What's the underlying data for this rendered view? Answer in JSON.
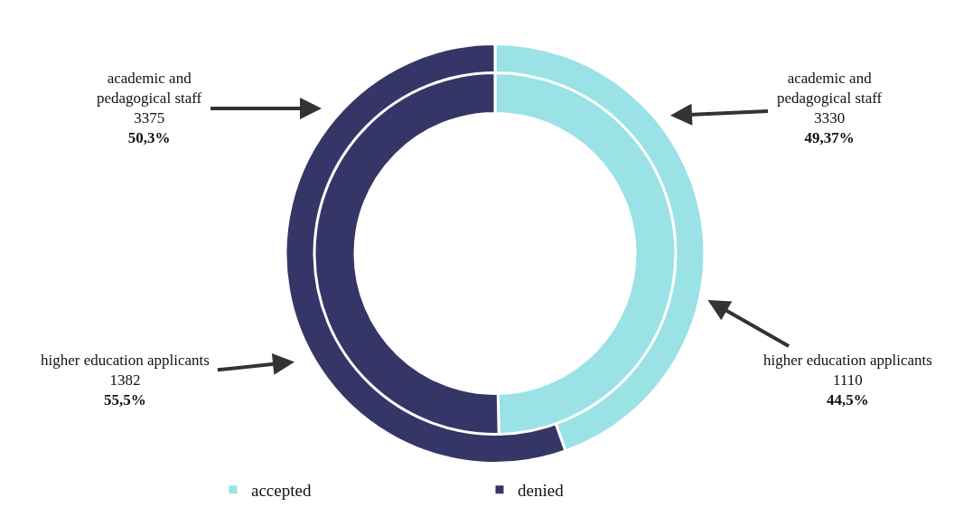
{
  "chart_data": {
    "type": "donut",
    "categories": [
      "accepted",
      "denied"
    ],
    "colors": [
      "#9ae2e6",
      "#363567"
    ],
    "legend": "bottom",
    "series": [
      {
        "name": "higher education applicants",
        "values": [
          1110,
          1382
        ],
        "value_labels": [
          "1110\n44,5%",
          "1382\n55,5%"
        ]
      },
      {
        "name": "academic and pedagogical staff",
        "values": [
          3330,
          3375
        ],
        "value_labels": [
          "3330\n49,37%",
          "3375\n50,3%"
        ]
      }
    ]
  }
}
